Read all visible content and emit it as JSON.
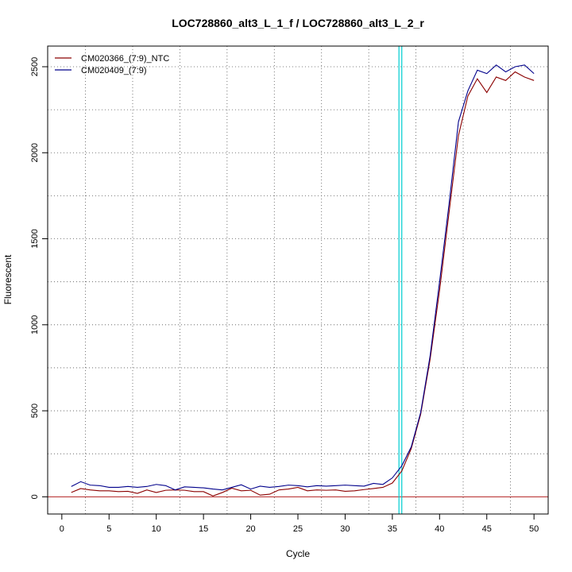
{
  "chart_data": {
    "type": "line",
    "title": "LOC728860_alt3_L_1_f / LOC728860_alt3_L_2_r",
    "xlabel": "Cycle",
    "ylabel": "Fluorescent",
    "xlim": [
      -1.5,
      51.5
    ],
    "ylim": [
      -100,
      2620
    ],
    "x_ticks": [
      0,
      5,
      10,
      15,
      20,
      25,
      30,
      35,
      40,
      45,
      50
    ],
    "y_ticks": [
      0,
      500,
      1000,
      1500,
      2000,
      2500
    ],
    "grid": true,
    "legend_position": "top-left",
    "threshold_lines": [
      {
        "x": 35.7,
        "color": "#00ced1"
      },
      {
        "x": 36.0,
        "color": "#00ced1"
      }
    ],
    "baseline": {
      "y": 0,
      "color": "#b22222"
    },
    "x": [
      1,
      2,
      3,
      4,
      5,
      6,
      7,
      8,
      9,
      10,
      11,
      12,
      13,
      14,
      15,
      16,
      17,
      18,
      19,
      20,
      21,
      22,
      23,
      24,
      25,
      26,
      27,
      28,
      29,
      30,
      31,
      32,
      33,
      34,
      35,
      36,
      37,
      38,
      39,
      40,
      41,
      42,
      43,
      44,
      45,
      46,
      47,
      48,
      49,
      50
    ],
    "series": [
      {
        "name": "CM020366_(7:9)_NTC",
        "color": "#8b0000",
        "values": [
          25,
          48,
          40,
          35,
          35,
          30,
          32,
          20,
          40,
          25,
          38,
          40,
          38,
          30,
          30,
          5,
          25,
          50,
          35,
          38,
          10,
          15,
          40,
          45,
          55,
          35,
          40,
          38,
          40,
          32,
          35,
          42,
          48,
          55,
          80,
          150,
          280,
          480,
          800,
          1200,
          1650,
          2100,
          2330,
          2430,
          2350,
          2440,
          2420,
          2470,
          2440,
          2420
        ]
      },
      {
        "name": "CM020409_(7:9)",
        "color": "#00008b",
        "values": [
          60,
          88,
          68,
          65,
          55,
          55,
          60,
          55,
          60,
          72,
          65,
          40,
          58,
          55,
          52,
          45,
          40,
          55,
          70,
          45,
          62,
          55,
          60,
          68,
          65,
          58,
          65,
          62,
          65,
          68,
          65,
          62,
          78,
          72,
          110,
          180,
          290,
          490,
          820,
          1250,
          1700,
          2180,
          2360,
          2480,
          2460,
          2510,
          2470,
          2500,
          2510,
          2460
        ]
      }
    ]
  }
}
